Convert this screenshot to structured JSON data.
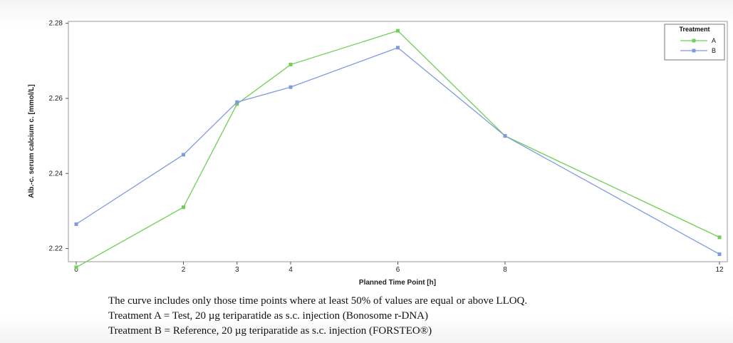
{
  "chart_data": {
    "type": "line",
    "title": "",
    "xlabel": "Planned Time Point [h]",
    "ylabel": "Alb.-c. serum calcium c. [mmol/L]",
    "x": [
      0,
      2,
      3,
      4,
      6,
      8,
      12
    ],
    "xticks": [
      "0",
      "2",
      "3",
      "4",
      "6",
      "8",
      "12"
    ],
    "xlim": [
      0,
      12
    ],
    "yticks": [
      "2.22",
      "2.24",
      "2.26",
      "2.28"
    ],
    "ylim": [
      2.2165,
      2.2805
    ],
    "grid": false,
    "legend": {
      "title": "Treatment",
      "placement": "top-right"
    },
    "series": [
      {
        "name": "A",
        "color": "#6fcf57",
        "values": [
          2.215,
          2.231,
          2.2585,
          2.269,
          2.278,
          2.25,
          2.223
        ]
      },
      {
        "name": "B",
        "color": "#7f9be0",
        "values": [
          2.2265,
          2.245,
          2.259,
          2.263,
          2.2735,
          2.25,
          2.2185
        ]
      }
    ]
  },
  "notes": [
    "The curve includes only those time points where at least 50% of values are equal or above LLOQ.",
    "Treatment A = Test, 20 µg teriparatide as s.c. injection (Bonosome r-DNA)",
    "Treatment B = Reference, 20 µg teriparatide as s.c. injection (FORSTEO®)"
  ]
}
